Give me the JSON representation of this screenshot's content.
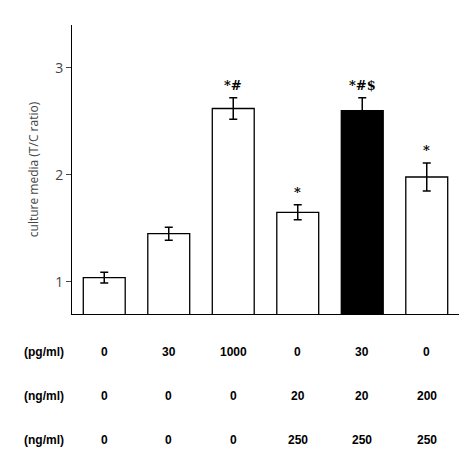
{
  "chart_data": {
    "type": "bar",
    "ylabel": "culture media (T/C ratio)",
    "categories": [
      null,
      null,
      null,
      null,
      null,
      null
    ],
    "values": [
      1.04,
      1.45,
      2.62,
      1.65,
      2.6,
      1.98
    ],
    "errors": [
      0.05,
      0.06,
      0.1,
      0.07,
      0.12,
      0.13
    ],
    "colors": [
      "white",
      "white",
      "white",
      "white",
      "black",
      "white"
    ],
    "annotations": [
      null,
      null,
      "*#",
      "*",
      "*#$",
      "*"
    ],
    "ylim": [
      0.7,
      3.4
    ],
    "yticks": [
      1,
      2,
      3
    ],
    "grid": false,
    "tick_labels": "y",
    "table": [
      {
        "label": "(pg/ml)",
        "cells": [
          "0",
          "30",
          "1000",
          "0",
          "30",
          "0"
        ]
      },
      {
        "label": "(ng/ml)",
        "cells": [
          "0",
          "0",
          "0",
          "20",
          "20",
          "200"
        ]
      },
      {
        "label": "(ng/ml)",
        "cells": [
          "0",
          "0",
          "0",
          "250",
          "250",
          "250"
        ]
      }
    ]
  }
}
